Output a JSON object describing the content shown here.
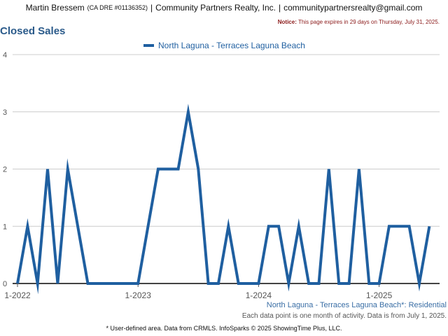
{
  "header": {
    "agent_name": "Martin Bressem",
    "license": "(CA DRE #01136352)",
    "sep": "|",
    "company": "Community Partners Realty, Inc.",
    "email": "communitypartnersrealty@gmail.com"
  },
  "notice": {
    "label": "Notice:",
    "text": "This page expires in 29 days on Thursday, July 31, 2025."
  },
  "page_title": "Closed Sales",
  "colors": {
    "series": "#1f5fa0",
    "grid": "#cccccc",
    "axis": "#555555"
  },
  "chart_data": {
    "type": "line",
    "title": "",
    "xlabel": "",
    "ylabel": "",
    "ylim": [
      0,
      4
    ],
    "yticks": [
      "0",
      "1",
      "2",
      "3",
      "4"
    ],
    "x_tick_labels": [
      "1-2022",
      "1-2023",
      "1-2024",
      "1-2025"
    ],
    "x_tick_months": [
      0,
      12,
      24,
      36
    ],
    "grid": true,
    "legend_position": "top-center",
    "x": [
      "1-2022",
      "2-2022",
      "3-2022",
      "4-2022",
      "5-2022",
      "6-2022",
      "7-2022",
      "8-2022",
      "9-2022",
      "10-2022",
      "11-2022",
      "12-2022",
      "1-2023",
      "2-2023",
      "3-2023",
      "4-2023",
      "5-2023",
      "6-2023",
      "7-2023",
      "8-2023",
      "9-2023",
      "10-2023",
      "11-2023",
      "12-2023",
      "1-2024",
      "2-2024",
      "3-2024",
      "4-2024",
      "5-2024",
      "6-2024",
      "7-2024",
      "8-2024",
      "9-2024",
      "10-2024",
      "11-2024",
      "12-2024",
      "1-2025",
      "2-2025",
      "3-2025",
      "4-2025",
      "5-2025",
      "6-2025"
    ],
    "series": [
      {
        "name": "North Laguna - Terraces Laguna Beach",
        "values": [
          0,
          1,
          0,
          2,
          0,
          2,
          1,
          0,
          0,
          0,
          0,
          0,
          0,
          1,
          2,
          2,
          2,
          3,
          2,
          0,
          0,
          1,
          0,
          0,
          0,
          1,
          1,
          0,
          1,
          0,
          0,
          2,
          0,
          0,
          2,
          0,
          0,
          1,
          1,
          1,
          0,
          1
        ]
      }
    ]
  },
  "caption": "North Laguna - Terraces Laguna Beach*: Residential",
  "caption_note": "Each data point is one month of activity. Data is from July 1, 2025.",
  "footer": "* User-defined area. Data from CRMLS. InfoSparks © 2025 ShowingTime Plus, LLC."
}
